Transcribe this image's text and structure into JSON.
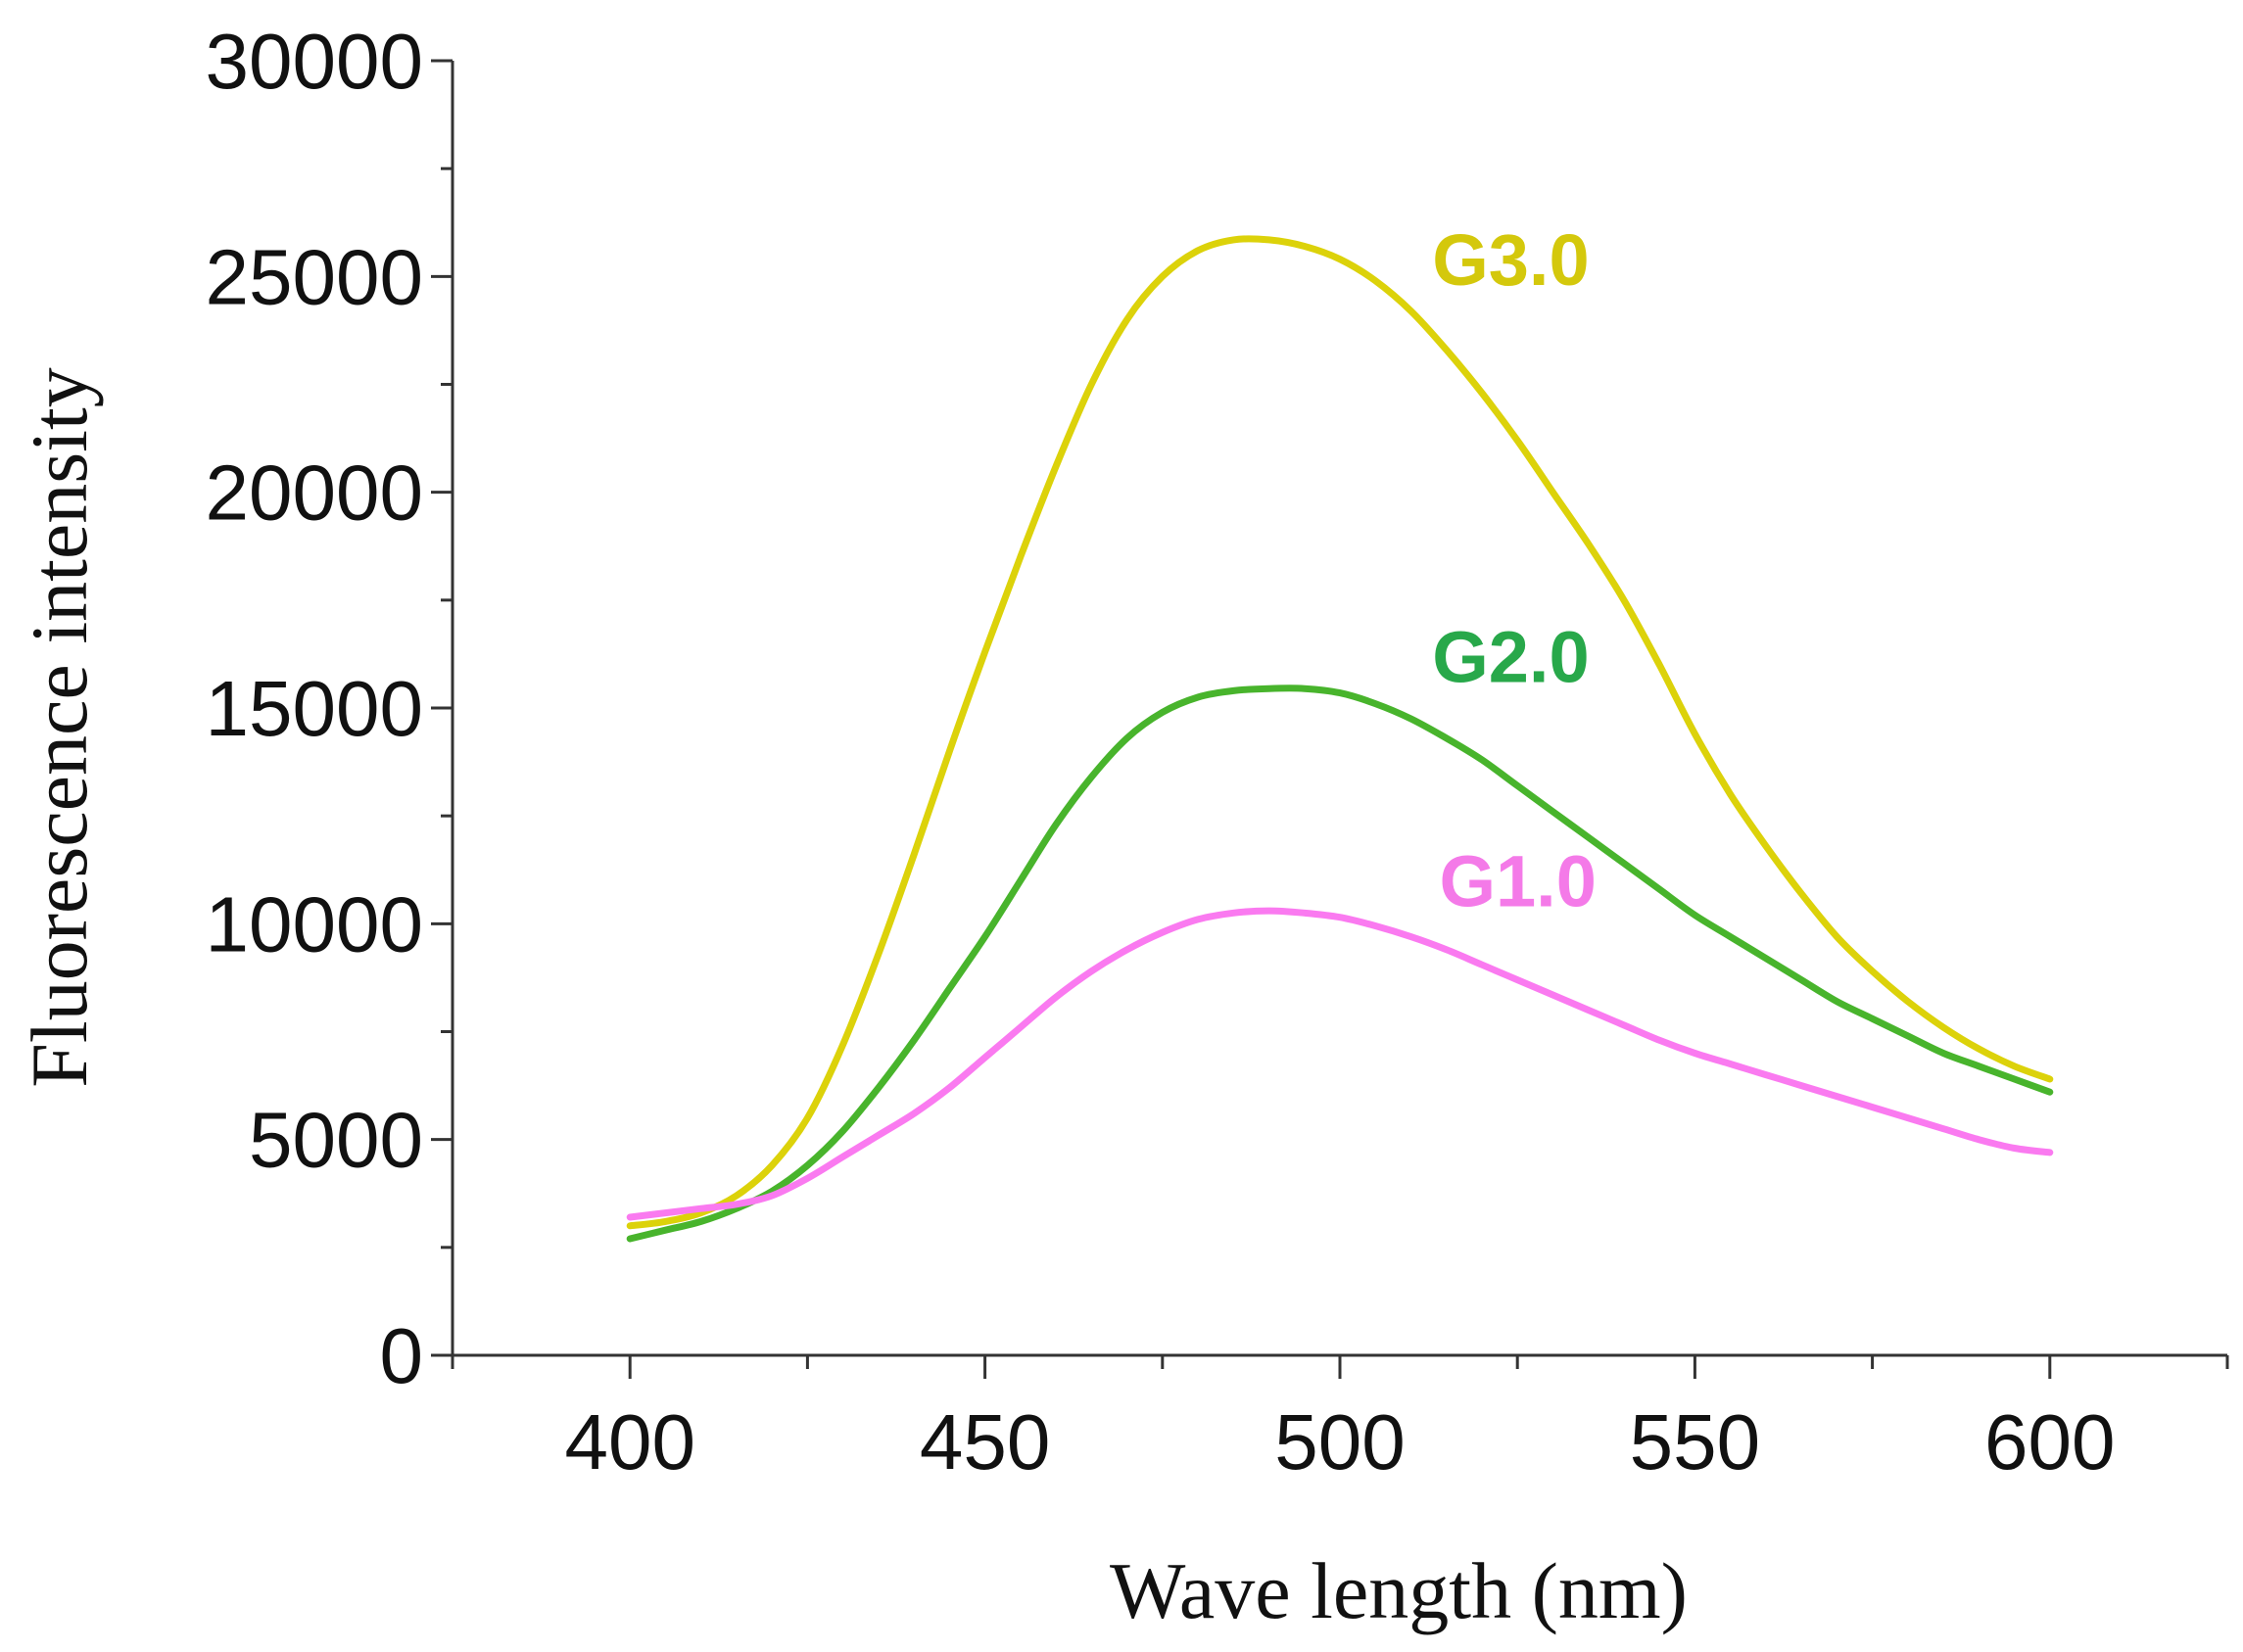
{
  "chart_data": {
    "type": "line",
    "title": "",
    "xlabel": "Wave length (nm)",
    "ylabel": "Fluorescence intensity",
    "xlim": [
      375,
      625
    ],
    "ylim": [
      0,
      30000
    ],
    "xticks": [
      400,
      450,
      500,
      550,
      600
    ],
    "yticks": [
      0,
      5000,
      10000,
      15000,
      20000,
      25000,
      30000
    ],
    "x_minor_step": 25,
    "y_minor_step": 2500,
    "grid": false,
    "legend": "inline labels near curves",
    "series": [
      {
        "name": "G3.0",
        "color": "#dcd20a",
        "label_color": "#d4c80c",
        "label_anchor": [
          513,
          24800
        ],
        "x": [
          400,
          405,
          410,
          415,
          420,
          425,
          430,
          435,
          440,
          445,
          450,
          455,
          460,
          465,
          470,
          475,
          480,
          485,
          490,
          495,
          500,
          505,
          510,
          515,
          520,
          525,
          530,
          535,
          540,
          545,
          550,
          555,
          560,
          565,
          570,
          575,
          580,
          585,
          590,
          595,
          600
        ],
        "y": [
          3000,
          3100,
          3300,
          3700,
          4400,
          5500,
          7200,
          9300,
          11600,
          14000,
          16300,
          18500,
          20600,
          22500,
          24000,
          25000,
          25600,
          25850,
          25850,
          25700,
          25400,
          24900,
          24200,
          23300,
          22300,
          21200,
          20000,
          18800,
          17500,
          16000,
          14400,
          13000,
          11800,
          10700,
          9700,
          8900,
          8200,
          7600,
          7100,
          6700,
          6400
        ]
      },
      {
        "name": "G2.0",
        "color": "#48b42c",
        "label_color": "#28a84a",
        "label_anchor": [
          513,
          15600
        ],
        "x": [
          400,
          405,
          410,
          415,
          420,
          425,
          430,
          435,
          440,
          445,
          450,
          455,
          460,
          465,
          470,
          475,
          480,
          485,
          490,
          495,
          500,
          505,
          510,
          515,
          520,
          525,
          530,
          535,
          540,
          545,
          550,
          555,
          560,
          565,
          570,
          575,
          580,
          585,
          590,
          595,
          600
        ],
        "y": [
          2700,
          2900,
          3100,
          3400,
          3800,
          4400,
          5200,
          6200,
          7300,
          8500,
          9700,
          11000,
          12300,
          13400,
          14300,
          14900,
          15250,
          15400,
          15450,
          15450,
          15350,
          15100,
          14750,
          14300,
          13800,
          13200,
          12600,
          12000,
          11400,
          10800,
          10200,
          9700,
          9200,
          8700,
          8200,
          7800,
          7400,
          7000,
          6700,
          6400,
          6100
        ]
      },
      {
        "name": "G1.0",
        "color": "#fa7af0",
        "label_color": "#f47ae8",
        "label_anchor": [
          514,
          10400
        ],
        "x": [
          400,
          405,
          410,
          415,
          420,
          425,
          430,
          435,
          440,
          445,
          450,
          455,
          460,
          465,
          470,
          475,
          480,
          485,
          490,
          495,
          500,
          505,
          510,
          515,
          520,
          525,
          530,
          535,
          540,
          545,
          550,
          555,
          560,
          565,
          570,
          575,
          580,
          585,
          590,
          595,
          600
        ],
        "y": [
          3200,
          3300,
          3400,
          3500,
          3700,
          4100,
          4600,
          5100,
          5600,
          6200,
          6900,
          7600,
          8300,
          8900,
          9400,
          9800,
          10100,
          10250,
          10300,
          10250,
          10150,
          9950,
          9700,
          9400,
          9050,
          8700,
          8350,
          8000,
          7650,
          7300,
          7000,
          6750,
          6500,
          6250,
          6000,
          5750,
          5500,
          5250,
          5000,
          4800,
          4700
        ]
      }
    ]
  }
}
